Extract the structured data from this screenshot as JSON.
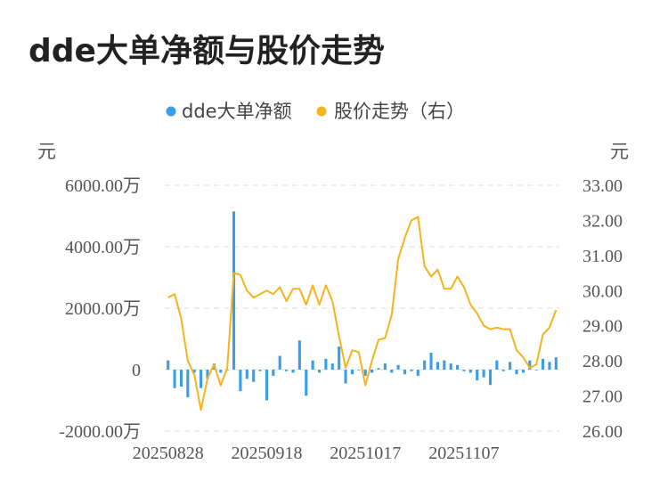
{
  "title": "dde大单净额与股价走势",
  "chart_data": {
    "type": "bar+line",
    "legend": [
      {
        "name": "dde大单净额",
        "color": "#3a9de8"
      },
      {
        "name": "股价走势（右）",
        "color": "#f5b41e"
      }
    ],
    "left_unit": "元",
    "right_unit": "元",
    "left_ticks": [
      "6000.00万",
      "4000.00万",
      "2000.00万",
      "0",
      "-2000.00万"
    ],
    "right_ticks": [
      "33.00",
      "32.00",
      "31.00",
      "30.00",
      "29.00",
      "28.00",
      "27.00",
      "26.00"
    ],
    "x_tick_labels": [
      "20250828",
      "20250918",
      "20251017",
      "20251107"
    ],
    "ylim_left": [
      -2000,
      6000
    ],
    "ylim_right": [
      26,
      33
    ],
    "grid": true,
    "legend_position": "top-center",
    "series": [
      {
        "name": "dde大单净额",
        "type": "bar",
        "unit": "万元",
        "values": [
          300,
          -600,
          -550,
          -900,
          -100,
          -600,
          -300,
          200,
          -100,
          0,
          5150,
          -700,
          -300,
          -400,
          -50,
          -1000,
          -200,
          450,
          -50,
          -100,
          950,
          -850,
          300,
          -100,
          350,
          200,
          750,
          -450,
          -150,
          0,
          -200,
          -100,
          50,
          200,
          -100,
          150,
          -150,
          -50,
          -200,
          300,
          550,
          250,
          300,
          200,
          150,
          -50,
          -100,
          -350,
          -250,
          -500,
          300,
          -50,
          250,
          -150,
          -100,
          300,
          0,
          350,
          250,
          400
        ]
      },
      {
        "name": "股价走势（右）",
        "type": "line",
        "unit": "元",
        "values": [
          29.8,
          29.9,
          29.2,
          28.0,
          27.6,
          26.6,
          27.5,
          27.9,
          27.3,
          27.8,
          30.5,
          30.45,
          30.0,
          29.8,
          29.9,
          30.0,
          29.9,
          30.1,
          29.7,
          30.05,
          30.05,
          29.6,
          30.15,
          29.6,
          30.15,
          29.7,
          28.7,
          27.8,
          28.3,
          28.25,
          27.3,
          28.0,
          28.6,
          28.65,
          29.3,
          30.9,
          31.5,
          32.0,
          32.1,
          30.7,
          30.4,
          30.6,
          30.05,
          30.05,
          30.4,
          30.1,
          29.6,
          29.35,
          29.0,
          28.9,
          28.95,
          28.9,
          28.9,
          28.3,
          28.1,
          27.8,
          27.9,
          28.75,
          28.95,
          29.45
        ]
      }
    ]
  }
}
